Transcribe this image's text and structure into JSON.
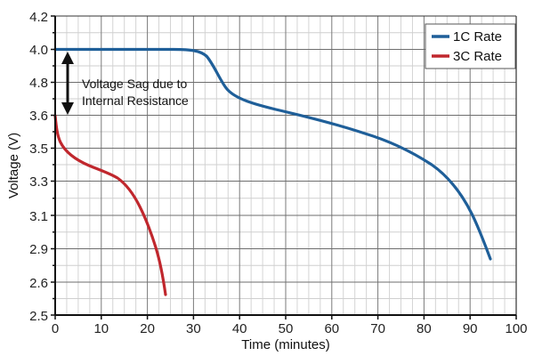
{
  "chart_data": {
    "type": "line",
    "title": "",
    "xlabel": "Time (minutes)",
    "ylabel": "Voltage (V)",
    "xlim": [
      0,
      100
    ],
    "x_ticks": [
      "0",
      "10",
      "20",
      "30",
      "40",
      "50",
      "60",
      "70",
      "80",
      "90",
      "100"
    ],
    "y_ticks": [
      "4.2",
      "4.0",
      "4.8",
      "3.6",
      "3.5",
      "3.3",
      "3.1",
      "2.9",
      "2.6",
      "2.5"
    ],
    "grid": true,
    "legend_position": "top-right",
    "series": [
      {
        "name": "1C Rate",
        "color": "#1f5f99",
        "x": [
          0,
          5,
          10,
          15,
          20,
          25,
          28,
          31,
          34,
          37,
          40,
          45,
          50,
          55,
          60,
          65,
          70,
          75,
          80,
          85,
          88,
          90,
          92,
          94,
          95
        ],
        "y_visual_level": [
          1.0,
          1.0,
          1.0,
          1.0,
          1.0,
          1.0,
          0.99,
          0.95,
          0.78,
          0.55,
          0.42,
          0.35,
          0.31,
          0.28,
          0.22,
          0.15,
          0.08,
          0.0,
          -0.09,
          -0.28,
          -0.48,
          -0.72,
          -1.05,
          -1.5,
          -1.8
        ]
      },
      {
        "name": "3C Rate",
        "color": "#c0272d",
        "x": [
          0,
          1,
          2,
          4,
          6,
          8,
          10,
          12,
          14,
          16,
          18,
          20,
          22,
          24
        ],
        "y": [
          3.6,
          3.52,
          3.45,
          3.4,
          3.37,
          3.34,
          3.32,
          3.3,
          3.26,
          3.18,
          3.05,
          2.9,
          2.72,
          2.53
        ]
      }
    ],
    "annotations": [
      {
        "text": "Voltage Sag due to Internal Resistance",
        "type": "double-arrow",
        "from_y": "4.0",
        "to_y": "3.6",
        "x": 3
      }
    ]
  },
  "legend": {
    "items": [
      {
        "label": "1C Rate",
        "color": "#1f5f99"
      },
      {
        "label": "3C Rate",
        "color": "#c0272d"
      }
    ]
  },
  "annotation": {
    "line1": "Voltage Sag due to",
    "line2": "Internal Resistance"
  },
  "axes": {
    "xlabel": "Time (minutes)",
    "ylabel": "Voltage (V)",
    "x_ticks": [
      "0",
      "10",
      "20",
      "30",
      "40",
      "50",
      "60",
      "70",
      "80",
      "90",
      "100"
    ],
    "y_ticks": [
      "4.2",
      "4.0",
      "4.8",
      "3.6",
      "3.5",
      "3.3",
      "3.1",
      "2.9",
      "2.6",
      "2.5"
    ]
  }
}
